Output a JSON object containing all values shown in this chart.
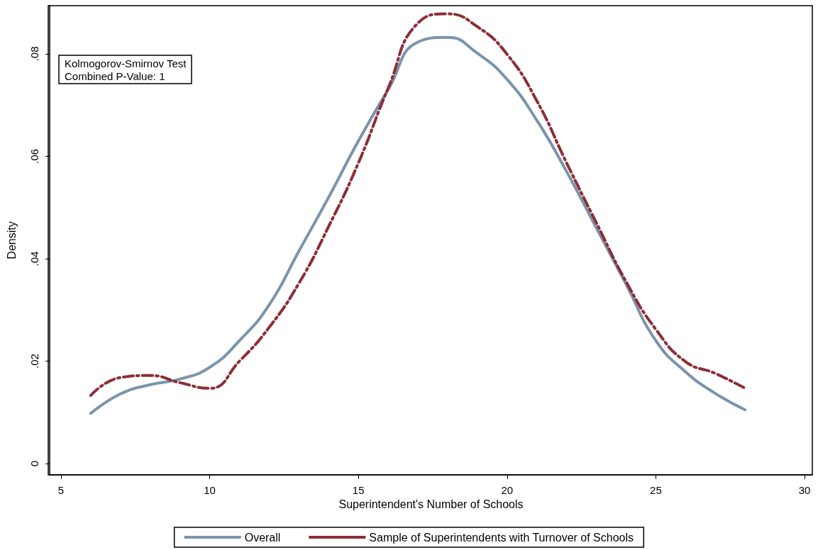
{
  "chart_data": {
    "type": "line",
    "xlabel": "Superintendent's Number of Schools",
    "ylabel": "Density",
    "annotations": [
      "Kolmogorov-Smirnov Test\nCombined P-Value: 1"
    ],
    "x": [
      6,
      7,
      8,
      9,
      10,
      11,
      12,
      13,
      14,
      15,
      16,
      17,
      18,
      19,
      20,
      21,
      22,
      23,
      24,
      25,
      26,
      27,
      28
    ],
    "series": [
      {
        "name": "Overall",
        "color": "#7a94aa",
        "line_style": "solid",
        "values": [
          0.0098,
          0.0136,
          0.0154,
          0.0165,
          0.0188,
          0.024,
          0.031,
          0.0415,
          0.052,
          0.063,
          0.073,
          0.0823,
          0.0832,
          0.0801,
          0.075,
          0.067,
          0.057,
          0.046,
          0.035,
          0.024,
          0.0179,
          0.0137,
          0.0105
        ]
      },
      {
        "name": "Sample of Superintendents with Turnover of Schools",
        "color": "#8c2e36",
        "line_style": "dashed",
        "values": [
          0.0133,
          0.0168,
          0.0172,
          0.0158,
          0.0147,
          0.02,
          0.0266,
          0.0352,
          0.0463,
          0.0587,
          0.0733,
          0.086,
          0.0878,
          0.0853,
          0.0799,
          0.0708,
          0.0587,
          0.047,
          0.0355,
          0.0262,
          0.0199,
          0.0176,
          0.0147
        ]
      }
    ],
    "xlim": [
      4.62,
      30.26
    ],
    "ylim": [
      -0.0022,
      0.0894
    ],
    "xticks": [
      5,
      10,
      15,
      20,
      25,
      30
    ],
    "yticks": [
      0,
      {
        "value": 0.02,
        "label": ".02"
      },
      {
        "value": 0.04,
        "label": ".04"
      },
      {
        "value": 0.06,
        "label": ".06"
      },
      {
        "value": 0.08,
        "label": ".08"
      }
    ],
    "grid": false,
    "legend": "bottom",
    "marker": "none"
  }
}
